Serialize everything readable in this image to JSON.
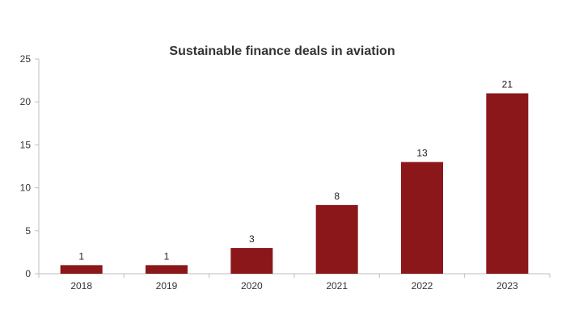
{
  "chart_data": {
    "type": "bar",
    "title": "Sustainable finance deals in aviation",
    "xlabel": "",
    "ylabel": "",
    "categories": [
      "2018",
      "2019",
      "2020",
      "2021",
      "2022",
      "2023"
    ],
    "values": [
      1,
      1,
      3,
      8,
      13,
      21
    ],
    "data_labels": [
      "1",
      "1",
      "3",
      "8",
      "13",
      "21"
    ],
    "ylim": [
      0,
      25
    ],
    "y_ticks": [
      0,
      5,
      10,
      15,
      20,
      25
    ],
    "y_tick_labels": [
      "0",
      "5",
      "10",
      "15",
      "20",
      "25"
    ],
    "grid": false,
    "legend": "none",
    "bar_color": "#8b171a"
  }
}
